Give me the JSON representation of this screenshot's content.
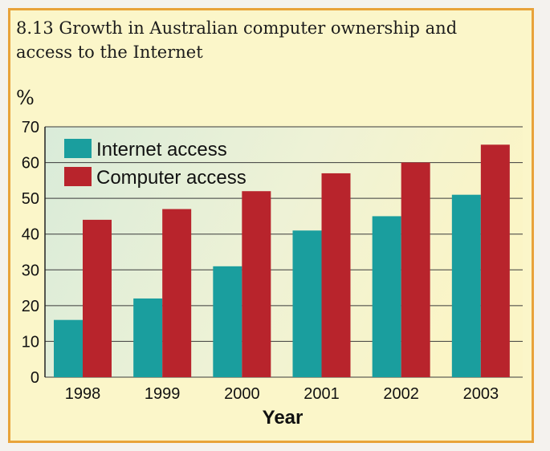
{
  "chart_data": {
    "type": "bar",
    "title": "8.13 Growth in Australian computer ownership and access to the Internet",
    "ylabel": "%",
    "xlabel": "Year",
    "categories": [
      "1998",
      "1999",
      "2000",
      "2001",
      "2002",
      "2003"
    ],
    "series": [
      {
        "name": "Internet access",
        "values": [
          16,
          22,
          31,
          41,
          45,
          51
        ]
      },
      {
        "name": "Computer access",
        "values": [
          44,
          47,
          52,
          57,
          60,
          65
        ]
      }
    ],
    "ylim": [
      0,
      70
    ],
    "yticks": [
      0,
      10,
      20,
      30,
      40,
      50,
      60,
      70
    ],
    "grid": true,
    "legend_position": "top-left",
    "colors": {
      "Internet access": "#1a9e9e",
      "Computer access": "#b8242c",
      "frame": "#e8a33a"
    }
  }
}
